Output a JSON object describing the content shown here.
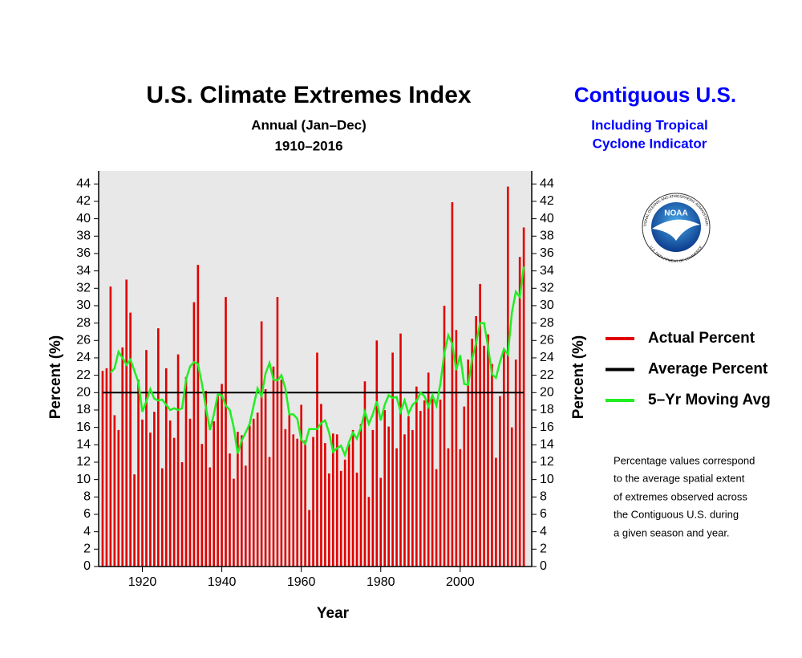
{
  "chart_data": {
    "type": "bar",
    "title": "U.S. Climate Extremes Index",
    "subtitle": [
      "Annual (Jan–Dec)",
      "1910–2016"
    ],
    "region_title": "Contiguous U.S.",
    "region_subtitle": [
      "Including Tropical",
      "Cyclone Indicator"
    ],
    "x_label": "Year",
    "y_label": "Percent (%)",
    "note": [
      "Percentage values correspond",
      "to the average spatial extent",
      "of extremes observed across",
      "the Contiguous U.S. during",
      "a given season and year."
    ],
    "logo": {
      "name": "NOAA",
      "ring_top": "NATIONAL OCEANIC AND ATMOSPHERIC ADMINISTRATION",
      "ring_bottom": "U.S. DEPARTMENT OF COMMERCE"
    },
    "x": [
      1910,
      1911,
      1912,
      1913,
      1914,
      1915,
      1916,
      1917,
      1918,
      1919,
      1920,
      1921,
      1922,
      1923,
      1924,
      1925,
      1926,
      1927,
      1928,
      1929,
      1930,
      1931,
      1932,
      1933,
      1934,
      1935,
      1936,
      1937,
      1938,
      1939,
      1940,
      1941,
      1942,
      1943,
      1944,
      1945,
      1946,
      1947,
      1948,
      1949,
      1950,
      1951,
      1952,
      1953,
      1954,
      1955,
      1956,
      1957,
      1958,
      1959,
      1960,
      1961,
      1962,
      1963,
      1964,
      1965,
      1966,
      1967,
      1968,
      1969,
      1970,
      1971,
      1972,
      1973,
      1974,
      1975,
      1976,
      1977,
      1978,
      1979,
      1980,
      1981,
      1982,
      1983,
      1984,
      1985,
      1986,
      1987,
      1988,
      1989,
      1990,
      1991,
      1992,
      1993,
      1994,
      1995,
      1996,
      1997,
      1998,
      1999,
      2000,
      2001,
      2002,
      2003,
      2004,
      2005,
      2006,
      2007,
      2008,
      2009,
      2010,
      2011,
      2012,
      2013,
      2014,
      2015,
      2016
    ],
    "series": [
      {
        "name": "Actual Percent",
        "color": "#e00000",
        "values": [
          22.5,
          22.8,
          32.2,
          17.4,
          15.7,
          25.2,
          33,
          29.2,
          10.6,
          21.5,
          16.9,
          24.9,
          15.4,
          17.8,
          27.4,
          11.3,
          22.8,
          16.8,
          14.8,
          24.4,
          12,
          21.8,
          17,
          30.4,
          34.7,
          14.1,
          20.2,
          11.4,
          16.7,
          19.8,
          21,
          31,
          13,
          10.1,
          15.5,
          15.1,
          11.6,
          16.2,
          17,
          17.7,
          28.2,
          20.4,
          12.6,
          23,
          31,
          21.5,
          15.8,
          17.5,
          15.2,
          14.7,
          18.6,
          14.5,
          6.5,
          14.9,
          24.6,
          18.7,
          14.2,
          10.7,
          15.3,
          15.2,
          11,
          12.3,
          14.1,
          15.7,
          10.8,
          16.4,
          21.3,
          8,
          15.7,
          26,
          10.2,
          18,
          16.1,
          24.6,
          13.6,
          26.8,
          15.2,
          17.3,
          15.7,
          20.7,
          17.9,
          19.1,
          22.3,
          19.3,
          11.2,
          19.2,
          30,
          13.6,
          41.9,
          27.2,
          13.5,
          18.4,
          23.8,
          26.2,
          28.8,
          32.5,
          25.4,
          26.7,
          23.3,
          12.5,
          19.6,
          25,
          43.7,
          16,
          23.8,
          35.6,
          39
        ]
      },
      {
        "name": "5–Yr Moving Avg",
        "color": "#22ee22",
        "values": [
          null,
          null,
          22.3,
          22.8,
          24.7,
          24,
          23.2,
          23.8,
          22.5,
          21.2,
          17.8,
          19,
          20.4,
          19.3,
          19.1,
          19.2,
          18.6,
          18,
          18.2,
          18,
          18.2,
          21.5,
          23,
          23.5,
          23.3,
          21,
          18.3,
          15.7,
          17.5,
          19.8,
          19.7,
          18.5,
          18,
          16,
          13,
          14.5,
          15.4,
          16.4,
          18.5,
          20.5,
          19.6,
          22.2,
          23.4,
          21.5,
          21.4,
          22,
          20.5,
          17.5,
          17.5,
          17,
          14.6,
          14.1,
          15.8,
          15.8,
          15.8,
          16.5,
          16.8,
          15.4,
          13.2,
          13.6,
          13.9,
          12.8,
          14.3,
          15.4,
          14.7,
          16,
          17.8,
          16.4,
          17.5,
          19,
          16.8,
          18.6,
          19.7,
          19.4,
          19.5,
          17.8,
          19.1,
          17.6,
          18.6,
          19,
          20,
          19.6,
          18.4,
          19.7,
          18.5,
          21,
          24.5,
          26.6,
          25.6,
          22.6,
          24.3,
          21,
          20.9,
          23.9,
          25.7,
          28,
          28,
          25.3,
          22.1,
          21.7,
          23.5,
          25,
          24.4,
          29.2,
          31.6,
          31,
          34.5
        ]
      }
    ],
    "average": {
      "name": "Average Percent",
      "color": "#000000",
      "value": 20
    },
    "xlim": [
      1909,
      2018
    ],
    "xticks": [
      1920,
      1940,
      1960,
      1980,
      2000
    ],
    "ylim": [
      0,
      45.5
    ],
    "yticks": [
      0,
      2,
      4,
      6,
      8,
      10,
      12,
      14,
      16,
      18,
      20,
      22,
      24,
      26,
      28,
      30,
      32,
      34,
      36,
      38,
      40,
      42,
      44
    ],
    "plot_background": "#e8e8e8"
  }
}
